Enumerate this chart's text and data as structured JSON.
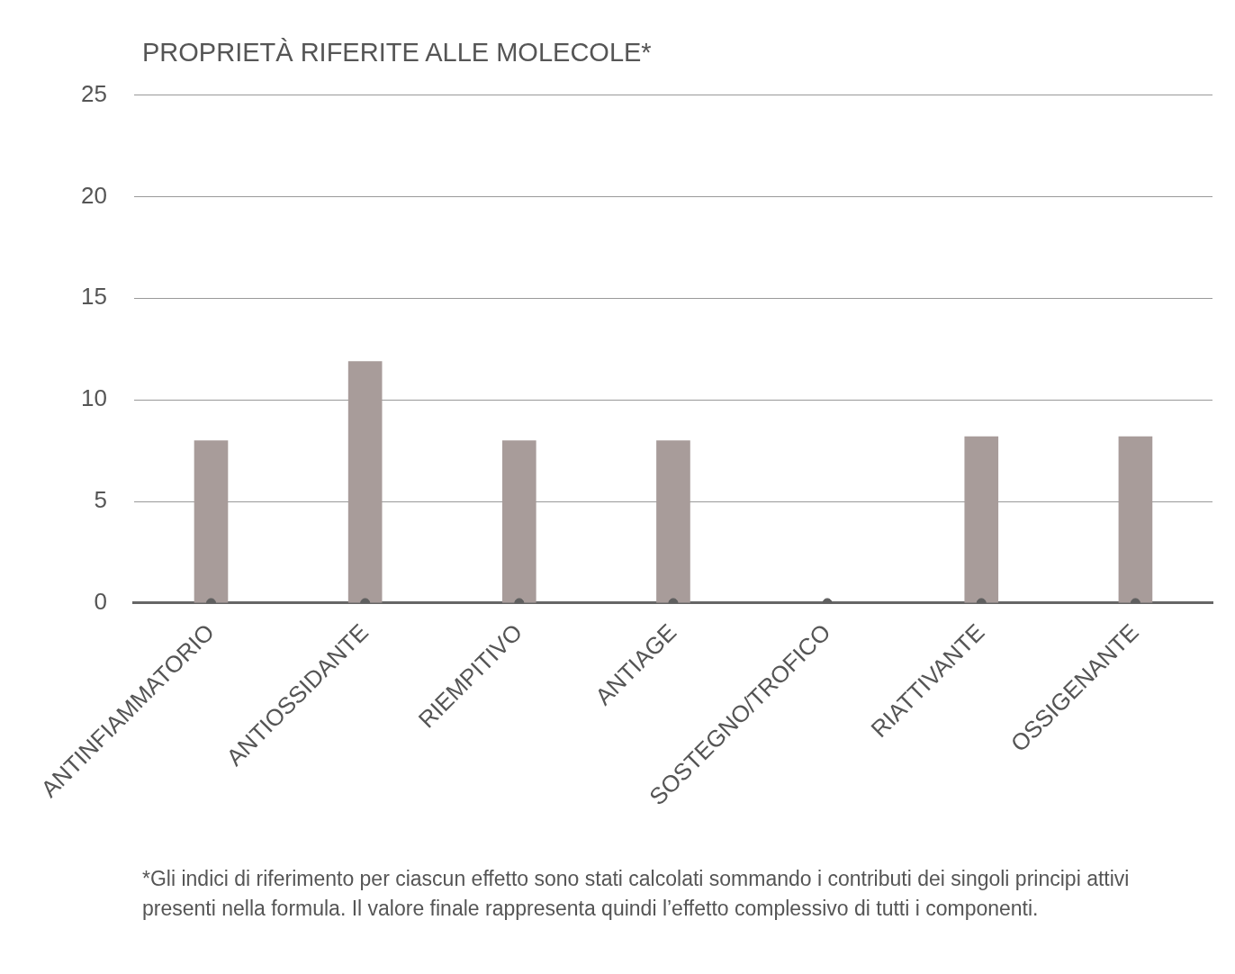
{
  "chart_data": {
    "type": "bar",
    "title": "PROPRIETÀ RIFERITE ALLE MOLECOLE*",
    "categories": [
      "ANTINFIAMMATORIO",
      "ANTIOSSIDANTE",
      "RIEMPITIVO",
      "ANTIAGE",
      "SOSTEGNO/TROFICO",
      "RIATTIVANTE",
      "OSSIGENANTE"
    ],
    "series": [
      {
        "color": "#a89c9a",
        "values": [
          8,
          11.9,
          8,
          8,
          0,
          8.2,
          8.2
        ]
      },
      {
        "type": "scatter",
        "color": "#5f5f5f",
        "marker": "circle",
        "values": [
          0,
          0,
          0,
          0,
          0,
          0,
          0
        ]
      }
    ],
    "ylim": [
      0,
      25
    ],
    "yticks": [
      0,
      5,
      10,
      15,
      20,
      25
    ],
    "grid": "y",
    "legend": false,
    "annotations": [
      "*Gli indici di riferimento per ciascun effetto sono stati calcolati sommando i contributi dei singoli principi attivi presenti nella formula. Il valore finale rappresenta quindi l’effetto complessivo di tutti i componenti."
    ]
  }
}
